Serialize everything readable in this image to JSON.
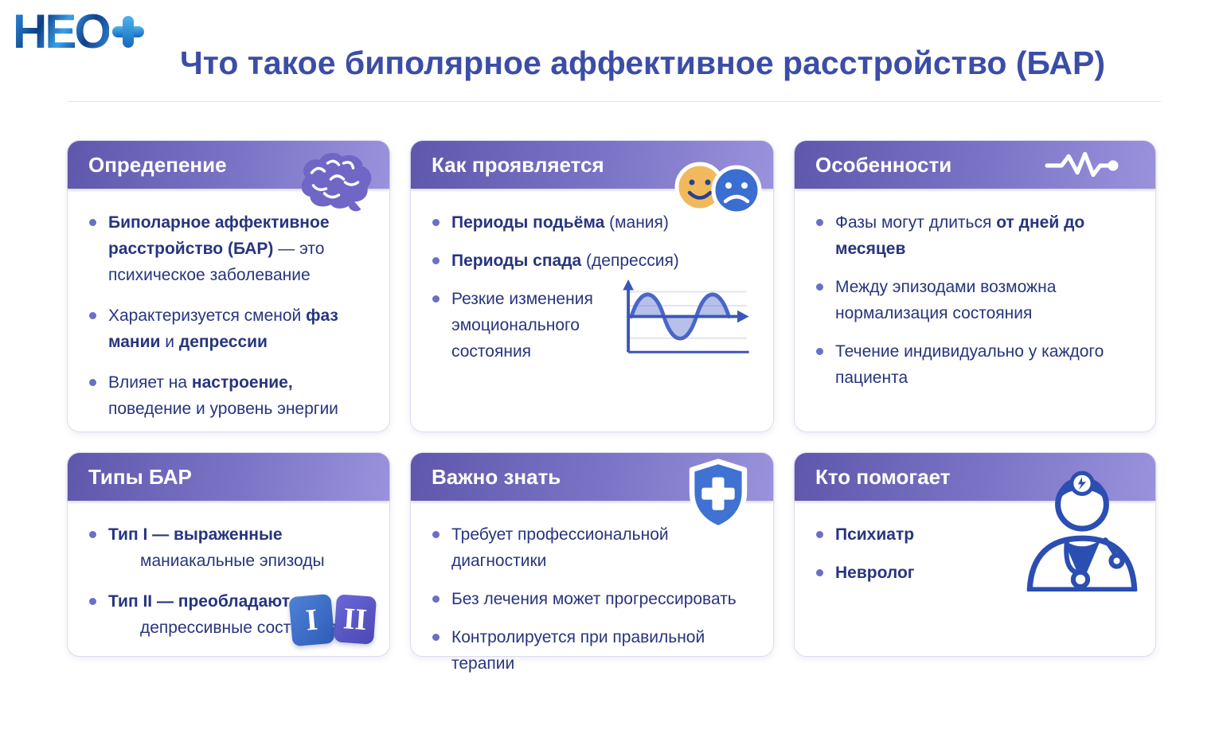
{
  "logo": {
    "text": "НЕО",
    "plus": "+"
  },
  "header": {
    "title": "Что такое биполярное аффективное расстройство (БАР)"
  },
  "colors": {
    "page_title": "#3b4da7",
    "card_header_gradient_start": "#5e57ab",
    "card_header_gradient_end": "#9a92dc",
    "body_text": "#27357e",
    "bullet_dot": "#6a6fc7",
    "happy_face": "#f0ba5c",
    "sad_face": "#3a6ed0",
    "shield": "#3f72d2",
    "badge_type1": "#2e5cb8",
    "badge_type2": "#4b48b4"
  },
  "cards": [
    {
      "icon": "brain-icon",
      "title": "Опредепение",
      "bullets": [
        {
          "segments": [
            {
              "text": "Биполарное аффективное расстройство (БАР)",
              "bold": true
            },
            {
              "text": " — это психическое заболевание",
              "bold": false
            }
          ]
        },
        {
          "segments": [
            {
              "text": "Характеризуется сменой ",
              "bold": false
            },
            {
              "text": "фаз мании",
              "bold": true
            },
            {
              "text": " и ",
              "bold": false
            },
            {
              "text": "депрессии",
              "bold": true
            }
          ]
        },
        {
          "segments": [
            {
              "text": "Влияет на ",
              "bold": false
            },
            {
              "text": "настроение,",
              "bold": true
            },
            {
              "text": " поведение и уровень энергии",
              "bold": false
            }
          ]
        }
      ]
    },
    {
      "icon": "happy-sad-faces-icon",
      "title": "Как проявляется",
      "bullets": [
        {
          "segments": [
            {
              "text": "Периоды подьёма",
              "bold": true
            },
            {
              "text": " (мания)",
              "bold": false
            }
          ]
        },
        {
          "segments": [
            {
              "text": "Периоды спада",
              "bold": true
            },
            {
              "text": " (депрессия)",
              "bold": false
            }
          ]
        },
        {
          "segments": [
            {
              "text": "Резкие изменения эмоционального состояния",
              "bold": false
            }
          ]
        }
      ]
    },
    {
      "icon": "pulse-line-icon",
      "title": "Особенности",
      "bullets": [
        {
          "segments": [
            {
              "text": "Фазы могут длиться ",
              "bold": false
            },
            {
              "text": "от дней до месяцев",
              "bold": true
            }
          ]
        },
        {
          "segments": [
            {
              "text": "Между эпизодами возможна нормализация состояния",
              "bold": false
            }
          ]
        },
        {
          "segments": [
            {
              "text": "Течение индивидуально у каждого пациента",
              "bold": false
            }
          ]
        }
      ]
    },
    {
      "icon": "type-badges-icon",
      "title": "Типы БАР",
      "badges": {
        "type1": "I",
        "type2": "II"
      },
      "bullets": [
        {
          "segments": [
            {
              "text": "Тип I — выраженные",
              "bold": true
            },
            {
              "text": " маниакальные эпизоды",
              "bold": false
            }
          ]
        },
        {
          "segments": [
            {
              "text": "Тип II — преобладают",
              "bold": true
            },
            {
              "text": " депрессивные состояния",
              "bold": false
            }
          ]
        }
      ]
    },
    {
      "icon": "shield-cross-icon",
      "title": "Важно знать",
      "bullets": [
        {
          "segments": [
            {
              "text": "Требует профессиональной диагностики",
              "bold": false
            }
          ]
        },
        {
          "segments": [
            {
              "text": "Без лечения может прогрессировать",
              "bold": false
            }
          ]
        },
        {
          "segments": [
            {
              "text": "Контролируется при правильной терапии",
              "bold": false
            }
          ]
        }
      ]
    },
    {
      "icon": "doctor-icon",
      "title": "Кто помогает",
      "bullets": [
        {
          "segments": [
            {
              "text": "Психиатр",
              "bold": true
            }
          ]
        },
        {
          "segments": [
            {
              "text": "Невролог",
              "bold": true
            }
          ]
        }
      ]
    }
  ]
}
